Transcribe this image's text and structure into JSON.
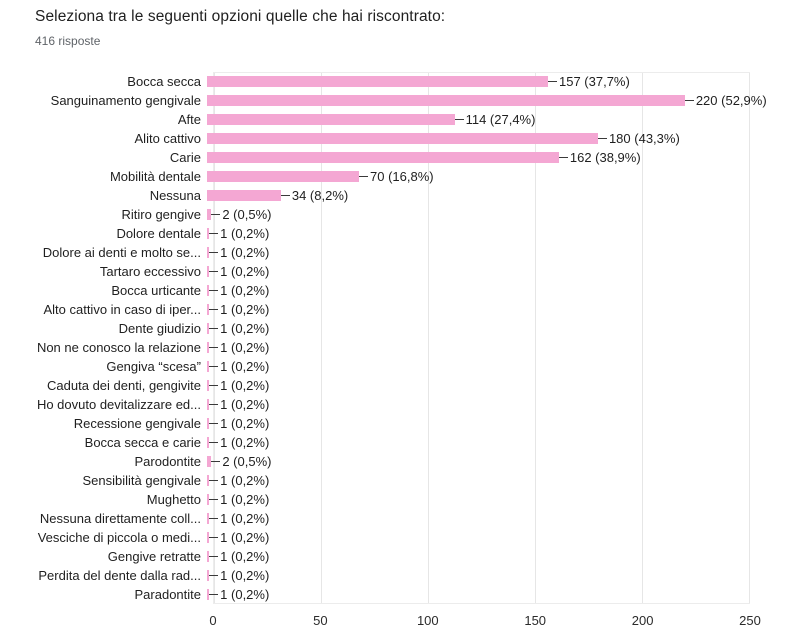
{
  "header": {
    "title": "Seleziona tra le seguenti opzioni quelle che hai riscontrato:",
    "subtitle": "416 risposte"
  },
  "chart_data": {
    "type": "bar",
    "orientation": "horizontal",
    "title": "Seleziona tra le seguenti opzioni quelle che hai riscontrato:",
    "total_responses": 416,
    "bar_color": "#f4a7d3",
    "grid": true,
    "legend": "none",
    "xlabel": "",
    "ylabel": "",
    "xlim": [
      0,
      250
    ],
    "x_ticks": [
      "0",
      "50",
      "100",
      "150",
      "200",
      "250"
    ],
    "categories": [
      "Bocca secca",
      "Sanguinamento gengivale",
      "Afte",
      "Alito cattivo",
      "Carie",
      "Mobilità dentale",
      "Nessuna",
      "Ritiro gengive",
      "Dolore dentale",
      "Dolore ai denti e molto se...",
      "Tartaro eccessivo",
      "Bocca urticante",
      "Alto cattivo in caso di iper...",
      "Dente giudizio",
      "Non ne conosco la relazione",
      "Gengiva “scesa”",
      "Caduta dei denti, gengivite",
      "Ho dovuto devitalizzare ed...",
      "Recessione gengivale",
      "Bocca secca e carie",
      "Parodontite",
      "Sensibilità gengivale",
      "Mughetto",
      "Nessuna direttamente coll...",
      "Vesciche di piccola o medi...",
      "Gengive retratte",
      "Perdita del dente dalla rad...",
      "Paradontite"
    ],
    "values": [
      157,
      220,
      114,
      180,
      162,
      70,
      34,
      2,
      1,
      1,
      1,
      1,
      1,
      1,
      1,
      1,
      1,
      1,
      1,
      1,
      2,
      1,
      1,
      1,
      1,
      1,
      1,
      1
    ],
    "labels": [
      "157 (37,7%)",
      "220 (52,9%)",
      "114 (27,4%)",
      "180 (43,3%)",
      "162 (38,9%)",
      "70 (16,8%)",
      "34 (8,2%)",
      "2 (0,5%)",
      "1 (0,2%)",
      "1 (0,2%)",
      "1 (0,2%)",
      "1 (0,2%)",
      "1 (0,2%)",
      "1 (0,2%)",
      "1 (0,2%)",
      "1 (0,2%)",
      "1 (0,2%)",
      "1 (0,2%)",
      "1 (0,2%)",
      "1 (0,2%)",
      "2 (0,5%)",
      "1 (0,2%)",
      "1 (0,2%)",
      "1 (0,2%)",
      "1 (0,2%)",
      "1 (0,2%)",
      "1 (0,2%)",
      "1 (0,2%)"
    ]
  }
}
